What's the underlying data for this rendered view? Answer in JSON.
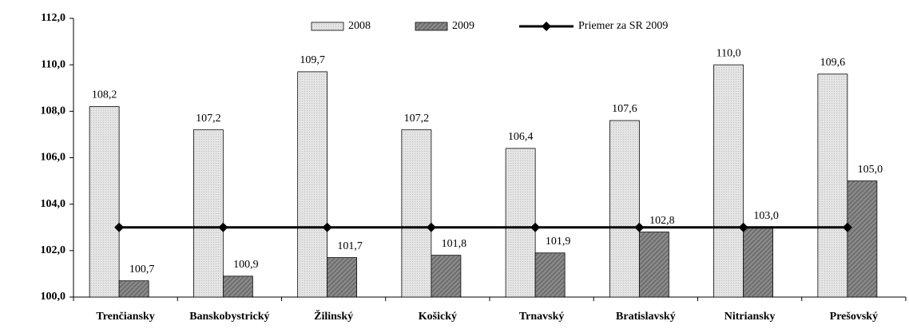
{
  "chart_data": {
    "type": "bar",
    "categories": [
      "Trenčiansky",
      "Banskobystrický",
      "Žilinský",
      "Košický",
      "Trnavský",
      "Bratislavský",
      "Nitriansky",
      "Prešovský"
    ],
    "series": [
      {
        "name": "2008",
        "color": "#e4e4e4",
        "values": [
          108.2,
          107.2,
          109.7,
          107.2,
          106.4,
          107.6,
          110.0,
          109.6
        ],
        "value_labels": [
          "108,2",
          "107,2",
          "109,7",
          "107,2",
          "106,4",
          "107,6",
          "110,0",
          "109,6"
        ]
      },
      {
        "name": "2009",
        "color": "#8a8a8a",
        "values": [
          100.7,
          100.9,
          101.7,
          101.8,
          101.9,
          102.8,
          103.0,
          105.0
        ],
        "value_labels": [
          "100,7",
          "100,9",
          "101,7",
          "101,8",
          "101,9",
          "102,8",
          "103,0",
          "105,0"
        ]
      },
      {
        "name": "Priemer za SR 2009",
        "type": "line",
        "color": "#000000",
        "values": [
          103.0,
          103.0,
          103.0,
          103.0,
          103.0,
          103.0,
          103.0,
          103.0
        ]
      }
    ],
    "ylim": [
      100,
      112
    ],
    "yticks": [
      {
        "value": 100,
        "label": "100,0"
      },
      {
        "value": 102,
        "label": "102,0"
      },
      {
        "value": 104,
        "label": "104,0"
      },
      {
        "value": 106,
        "label": "106,0"
      },
      {
        "value": 108,
        "label": "108,0"
      },
      {
        "value": 110,
        "label": "110,0"
      },
      {
        "value": 112,
        "label": "112,0"
      }
    ]
  }
}
